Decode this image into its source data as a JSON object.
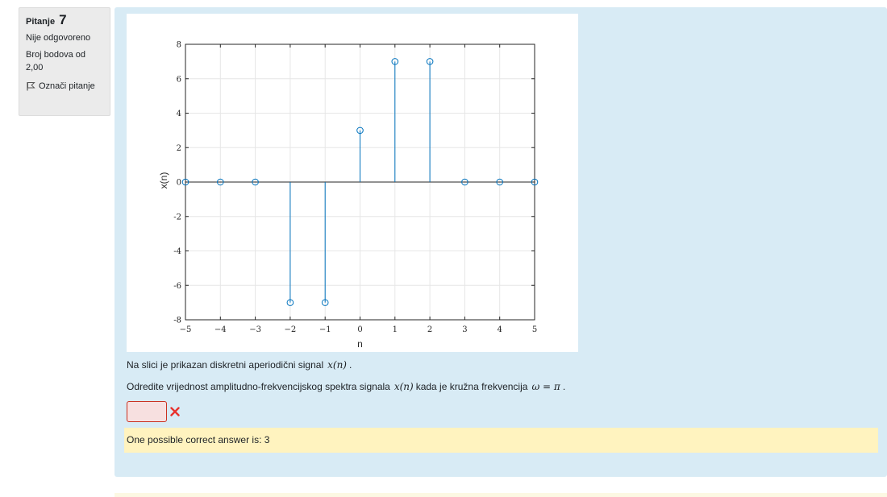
{
  "info": {
    "question_label": "Pitanje",
    "question_number": "7",
    "state": "Nije odgovoreno",
    "grade": "Broj bodova od 2,00",
    "flag_label": "Označi pitanje"
  },
  "question": {
    "text1_before": "Na slici je prikazan diskretni aperiodični signal",
    "text1_math": "x(n)",
    "text1_after": ".",
    "text2_before": "Odredite vrijednost amplitudno-frekvencijskog spektra signala",
    "text2_math": "x(n)",
    "text2_middle": "kada je kružna frekvencija",
    "text2_math2": "ω = π",
    "text2_after": ".",
    "answer_value": "",
    "feedback": "One possible correct answer is: 3"
  },
  "chart_data": {
    "type": "stem",
    "x": [
      -5,
      -4,
      -3,
      -2,
      -1,
      0,
      1,
      2,
      3,
      4,
      5
    ],
    "values": [
      0,
      0,
      0,
      -7,
      -7,
      3,
      7,
      7,
      0,
      0,
      0
    ],
    "xlabel": "n",
    "ylabel": "x(n)",
    "xlim": [
      -5,
      5
    ],
    "ylim": [
      -8,
      8
    ],
    "xticks": [
      "−5",
      "−4",
      "−3",
      "−2",
      "−1",
      "0",
      "1",
      "2",
      "3",
      "4",
      "5"
    ],
    "yticks": [
      "8",
      "6",
      "4",
      "2",
      "0",
      "-2",
      "-4",
      "-6",
      "-8"
    ],
    "grid": true,
    "color": "#0072bd"
  }
}
